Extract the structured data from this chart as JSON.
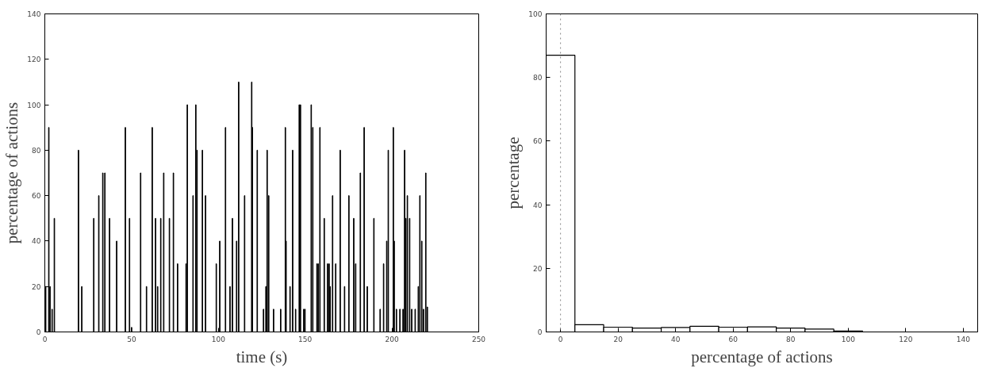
{
  "chart_data": [
    {
      "type": "bar",
      "xlabel": "time (s)",
      "ylabel": "percentage of actions",
      "x": [
        0.5,
        2.3,
        3,
        4.2,
        5.5,
        19.4,
        21.3,
        28.2,
        31.1,
        33.4,
        34.6,
        37.3,
        41.4,
        46.4,
        48.8,
        50,
        55.2,
        58.6,
        61.9,
        63.8,
        65,
        66.8,
        68.5,
        71.8,
        74.1,
        76.5,
        81.4,
        82.1,
        85.4,
        87,
        87.7,
        90.8,
        92.6,
        98.8,
        100.8,
        104.1,
        106.7,
        108.1,
        110.5,
        111.7,
        115.1,
        119.2,
        119.6,
        122.4,
        126,
        127.4,
        128.1,
        129,
        131.8,
        135.9,
        138.6,
        139,
        141.3,
        142.8,
        144.5,
        146.6,
        147.3,
        149.2,
        149.9,
        153.5,
        154.4,
        156.8,
        157.5,
        158.5,
        161,
        162.9,
        163.8,
        164.4,
        165.8,
        167.6,
        170.2,
        172.7,
        175.2,
        178,
        179.1,
        181.8,
        184,
        185.8,
        189.6,
        193.2,
        195.2,
        197,
        197.9,
        200.8,
        201.3,
        202.6,
        204.6,
        206.4,
        207.3,
        208,
        208.9,
        210.2,
        211.4,
        213.4,
        215.2,
        216.1,
        217.2,
        218.2,
        219.5,
        220.4
      ],
      "values": [
        20,
        90,
        20,
        10,
        50,
        80,
        20,
        50,
        60,
        70,
        70,
        50,
        40,
        90,
        50,
        2,
        70,
        20,
        90,
        50,
        20,
        50,
        70,
        50,
        70,
        30,
        30,
        100,
        60,
        100,
        80,
        80,
        60,
        30,
        40,
        90,
        20,
        50,
        40,
        110,
        60,
        110,
        90,
        80,
        10,
        20,
        80,
        60,
        10,
        10,
        90,
        40,
        20,
        80,
        10,
        100,
        100,
        10,
        10,
        100,
        90,
        30,
        30,
        90,
        50,
        30,
        30,
        20,
        60,
        30,
        80,
        20,
        60,
        50,
        30,
        70,
        90,
        20,
        50,
        10,
        30,
        40,
        80,
        90,
        40,
        10,
        10,
        10,
        80,
        50,
        60,
        50,
        10,
        10,
        20,
        60,
        40,
        10,
        70,
        11
      ],
      "color": "#000000",
      "xlim": [
        0,
        250
      ],
      "xticks": [
        0,
        50,
        100,
        150,
        200,
        250
      ],
      "ylim": [
        0,
        140
      ],
      "yticks": [
        0,
        20,
        40,
        60,
        80,
        100,
        120,
        140
      ],
      "grid": false
    },
    {
      "type": "histogram",
      "xlabel": "percentage of actions",
      "ylabel": "percentage",
      "bins": [
        -5,
        5,
        15,
        25,
        35,
        45,
        55,
        65,
        75,
        85,
        95,
        105,
        115
      ],
      "values": [
        87,
        2.3,
        1.5,
        1.2,
        1.4,
        1.8,
        1.5,
        1.6,
        1.2,
        0.9,
        0.3,
        null
      ],
      "color": "#000000",
      "xlim": [
        -5,
        145
      ],
      "xticks": [
        0,
        20,
        40,
        60,
        80,
        100,
        120,
        140
      ],
      "ylim": [
        0,
        100
      ],
      "yticks": [
        0,
        20,
        40,
        60,
        80,
        100
      ],
      "ref_lines": [
        {
          "axis": "x",
          "value": 0,
          "color": "#888888",
          "line_style": "dotted"
        }
      ],
      "grid": false
    }
  ]
}
